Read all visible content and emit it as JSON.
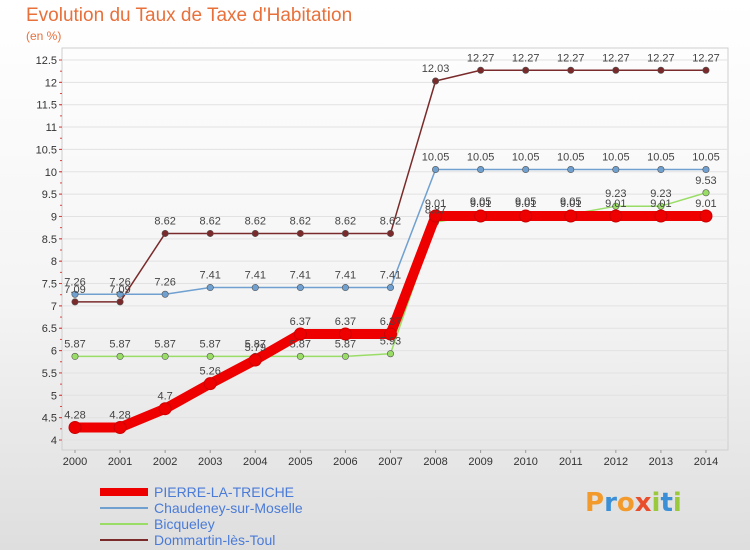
{
  "chart_data": {
    "type": "line",
    "title": "Evolution du Taux de Taxe d'Habitation",
    "ylabel": "(en %)",
    "xlabel": "",
    "x": [
      "2000",
      "2001",
      "2002",
      "2003",
      "2004",
      "2005",
      "2006",
      "2007",
      "2008",
      "2009",
      "2010",
      "2011",
      "2012",
      "2013",
      "2014"
    ],
    "ylim": [
      4,
      12.5
    ],
    "yticks": [
      "4",
      "4.5",
      "5",
      "5.5",
      "6",
      "6.5",
      "7",
      "7.5",
      "8",
      "8.5",
      "9",
      "9.5",
      "10",
      "10.5",
      "11",
      "11.5",
      "12",
      "12.5"
    ],
    "grid": "horizontal",
    "legend_position": "bottom-left",
    "series": [
      {
        "name": "PIERRE-LA-TREICHE",
        "color": "#ee0000",
        "values": [
          4.28,
          4.28,
          4.7,
          5.26,
          5.79,
          6.37,
          6.37,
          6.37,
          9.01,
          9.01,
          9.01,
          9.01,
          9.01,
          9.01,
          9.01
        ],
        "labels": [
          "4.28",
          "4.28",
          "4.7",
          "5.26",
          "5.79",
          "6.37",
          "6.37",
          "6.37",
          "9.01",
          "9.01",
          "9.01",
          "9.01",
          "9.01",
          "9.01",
          "9.01"
        ]
      },
      {
        "name": "Chaudeney-sur-Moselle",
        "color": "#6fa0d0",
        "values": [
          7.26,
          7.26,
          7.26,
          7.41,
          7.41,
          7.41,
          7.41,
          7.41,
          10.05,
          10.05,
          10.05,
          10.05,
          10.05,
          10.05,
          10.05
        ],
        "labels": [
          "7.26",
          "7.26",
          "7.26",
          "7.41",
          "7.41",
          "7.41",
          "7.41",
          "7.41",
          "10.05",
          "10.05",
          "10.05",
          "10.05",
          "10.05",
          "10.05",
          "10.05"
        ]
      },
      {
        "name": "Bicqueley",
        "color": "#99dd66",
        "values": [
          5.87,
          5.87,
          5.87,
          5.87,
          5.87,
          5.87,
          5.87,
          5.93,
          8.87,
          9.05,
          9.05,
          9.05,
          9.23,
          9.23,
          9.53
        ],
        "labels": [
          "5.87",
          "5.87",
          "5.87",
          "5.87",
          "5.87",
          "5.87",
          "5.87",
          "5.93",
          "8.87",
          "9.05",
          "9.05",
          "9.05",
          "9.23",
          "9.23",
          "9.53"
        ]
      },
      {
        "name": "Dommartin-lès-Toul",
        "color": "#7a2a2a",
        "values": [
          7.09,
          7.09,
          8.62,
          8.62,
          8.62,
          8.62,
          8.62,
          8.62,
          12.03,
          12.27,
          12.27,
          12.27,
          12.27,
          12.27,
          12.27
        ],
        "labels": [
          "7.09",
          "7.09",
          "8.62",
          "8.62",
          "8.62",
          "8.62",
          "8.62",
          "8.62",
          "12.03",
          "12.27",
          "12.27",
          "12.27",
          "12.27",
          "12.27",
          "12.27"
        ]
      }
    ]
  },
  "logo": {
    "letters": [
      "P",
      "r",
      "o",
      "x",
      "i",
      "t",
      "i"
    ],
    "colors": [
      "#f39a2c",
      "#3b8fd6",
      "#f39a2c",
      "#e94e2c",
      "#9bc93c",
      "#3b8fd6",
      "#9bc93c"
    ]
  }
}
